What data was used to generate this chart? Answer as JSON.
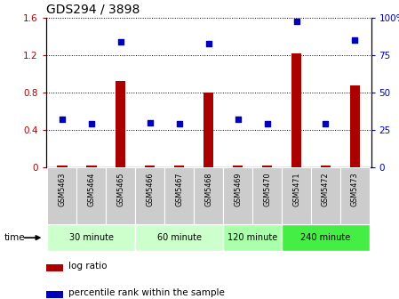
{
  "title": "GDS294 / 3898",
  "samples": [
    "GSM5463",
    "GSM5464",
    "GSM5465",
    "GSM5466",
    "GSM5467",
    "GSM5468",
    "GSM5469",
    "GSM5470",
    "GSM5471",
    "GSM5472",
    "GSM5473"
  ],
  "log_ratio": [
    0.02,
    0.02,
    0.93,
    0.02,
    0.02,
    0.8,
    0.02,
    0.02,
    1.22,
    0.02,
    0.88
  ],
  "percentile_rank": [
    32,
    29,
    84,
    30,
    29,
    83,
    32,
    29,
    98,
    29,
    85
  ],
  "group_defs": [
    {
      "label": "30 minute",
      "start": 0,
      "end": 2,
      "color": "#ccffcc"
    },
    {
      "label": "60 minute",
      "start": 3,
      "end": 5,
      "color": "#ccffcc"
    },
    {
      "label": "120 minute",
      "start": 6,
      "end": 7,
      "color": "#aaffaa"
    },
    {
      "label": "240 minute",
      "start": 8,
      "end": 10,
      "color": "#44ee44"
    }
  ],
  "bar_color": "#aa0000",
  "dot_color": "#0000bb",
  "ylim_left": [
    0,
    1.6
  ],
  "ylim_right": [
    0,
    100
  ],
  "yticks_left": [
    0,
    0.4,
    0.8,
    1.2,
    1.6
  ],
  "ytick_labels_left": [
    "0",
    "0.4",
    "0.8",
    "1.2",
    "1.6"
  ],
  "yticks_right": [
    0,
    25,
    50,
    75,
    100
  ],
  "ytick_labels_right": [
    "0",
    "25",
    "50",
    "75",
    "100%"
  ],
  "legend_items": [
    {
      "label": "log ratio",
      "color": "#aa0000"
    },
    {
      "label": "percentile rank within the sample",
      "color": "#0000bb"
    }
  ],
  "bg_color": "#ffffff",
  "sample_bg_color": "#cccccc",
  "bar_width": 0.35
}
